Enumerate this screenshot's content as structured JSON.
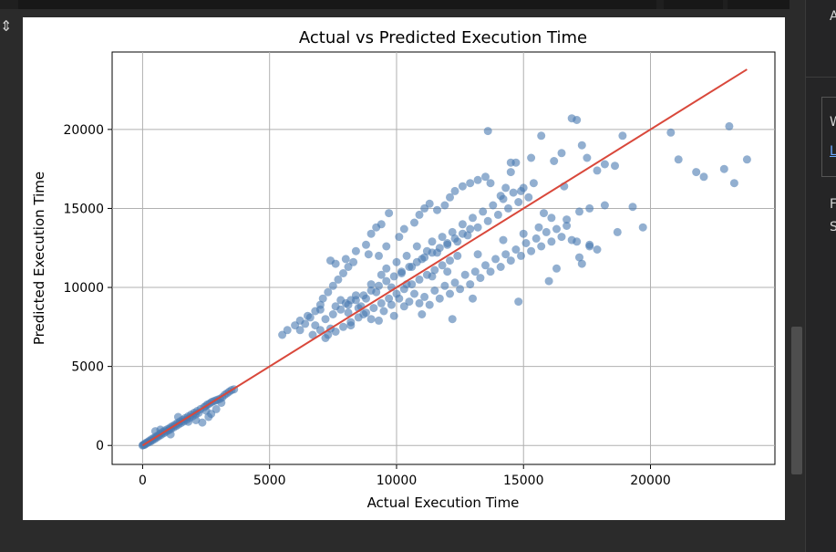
{
  "right_panel": {
    "line1": "A",
    "line2": "W",
    "line3_link": "L",
    "line4": "F",
    "line5": "S"
  },
  "colors": {
    "points": "#4a7ab0",
    "fit_line": "#d9483b",
    "grid": "#b0b0b0",
    "background": "#ffffff"
  },
  "chart_data": {
    "type": "scatter",
    "title": "Actual vs Predicted Execution Time",
    "xlabel": "Actual Execution Time",
    "ylabel": "Predicted Execution Time",
    "xlim": [
      -1200,
      24900
    ],
    "ylim": [
      -1200,
      24900
    ],
    "xticks": [
      0,
      5000,
      10000,
      15000,
      20000
    ],
    "yticks": [
      0,
      5000,
      10000,
      15000,
      20000
    ],
    "xtick_labels": [
      "0",
      "5000",
      "10000",
      "15000",
      "20000"
    ],
    "ytick_labels": [
      "0",
      "5000",
      "10000",
      "15000",
      "20000"
    ],
    "grid": true,
    "reference_line": {
      "x": [
        0,
        23800
      ],
      "y": [
        0,
        23800
      ]
    },
    "series": [
      {
        "points": [
          [
            0,
            0
          ],
          [
            20,
            30
          ],
          [
            50,
            60
          ],
          [
            80,
            40
          ],
          [
            110,
            140
          ],
          [
            150,
            120
          ],
          [
            190,
            210
          ],
          [
            220,
            180
          ],
          [
            260,
            290
          ],
          [
            300,
            240
          ],
          [
            340,
            380
          ],
          [
            380,
            320
          ],
          [
            430,
            470
          ],
          [
            470,
            400
          ],
          [
            520,
            560
          ],
          [
            560,
            500
          ],
          [
            610,
            650
          ],
          [
            650,
            590
          ],
          [
            700,
            760
          ],
          [
            740,
            680
          ],
          [
            790,
            850
          ],
          [
            840,
            780
          ],
          [
            880,
            950
          ],
          [
            930,
            870
          ],
          [
            980,
            1030
          ],
          [
            1030,
            960
          ],
          [
            1080,
            1120
          ],
          [
            1120,
            1040
          ],
          [
            1170,
            1220
          ],
          [
            1220,
            1140
          ],
          [
            1270,
            1310
          ],
          [
            1320,
            1230
          ],
          [
            1370,
            1420
          ],
          [
            1420,
            1330
          ],
          [
            1470,
            1520
          ],
          [
            1520,
            1430
          ],
          [
            1570,
            1620
          ],
          [
            1620,
            1520
          ],
          [
            1680,
            1730
          ],
          [
            1730,
            1620
          ],
          [
            1790,
            1840
          ],
          [
            1850,
            1740
          ],
          [
            1910,
            1950
          ],
          [
            1970,
            1850
          ],
          [
            2030,
            2070
          ],
          [
            2090,
            1960
          ],
          [
            2150,
            2180
          ],
          [
            2210,
            2060
          ],
          [
            2280,
            2300
          ],
          [
            2350,
            1450
          ],
          [
            2420,
            2420
          ],
          [
            2490,
            2500
          ],
          [
            2560,
            2600
          ],
          [
            2640,
            2650
          ],
          [
            2720,
            2750
          ],
          [
            2800,
            2800
          ],
          [
            2880,
            2850
          ],
          [
            2960,
            2900
          ],
          [
            3050,
            2950
          ],
          [
            3140,
            3050
          ],
          [
            3230,
            3200
          ],
          [
            3320,
            3300
          ],
          [
            3410,
            3400
          ],
          [
            3500,
            3500
          ],
          [
            3600,
            3550
          ],
          [
            500,
            900
          ],
          [
            700,
            1000
          ],
          [
            1100,
            700
          ],
          [
            1400,
            1800
          ],
          [
            1800,
            1500
          ],
          [
            2100,
            1600
          ],
          [
            2500,
            2200
          ],
          [
            2700,
            2000
          ],
          [
            2900,
            2300
          ],
          [
            3100,
            2700
          ],
          [
            2600,
            1800
          ],
          [
            5500,
            7000
          ],
          [
            5700,
            7300
          ],
          [
            6000,
            7600
          ],
          [
            6200,
            7900
          ],
          [
            6500,
            8200
          ],
          [
            6700,
            7000
          ],
          [
            7000,
            8600
          ],
          [
            7200,
            6800
          ],
          [
            7400,
            7400
          ],
          [
            7600,
            8800
          ],
          [
            7800,
            9200
          ],
          [
            8000,
            9000
          ],
          [
            8100,
            8400
          ],
          [
            8200,
            7600
          ],
          [
            8400,
            9500
          ],
          [
            8600,
            8800
          ],
          [
            8800,
            9300
          ],
          [
            9000,
            10200
          ],
          [
            9200,
            9700
          ],
          [
            9400,
            10800
          ],
          [
            9600,
            11200
          ],
          [
            9800,
            10000
          ],
          [
            10000,
            11600
          ],
          [
            10200,
            10900
          ],
          [
            10400,
            12000
          ],
          [
            10600,
            11300
          ],
          [
            10800,
            12600
          ],
          [
            11000,
            11800
          ],
          [
            11200,
            12300
          ],
          [
            11400,
            12900
          ],
          [
            11600,
            12200
          ],
          [
            11800,
            13200
          ],
          [
            12000,
            12700
          ],
          [
            12200,
            13500
          ],
          [
            12400,
            12900
          ],
          [
            12600,
            14000
          ],
          [
            12800,
            13300
          ],
          [
            13000,
            14400
          ],
          [
            13200,
            13800
          ],
          [
            13400,
            14800
          ],
          [
            13600,
            14200
          ],
          [
            13800,
            15200
          ],
          [
            14000,
            14600
          ],
          [
            14200,
            15600
          ],
          [
            14400,
            15000
          ],
          [
            14600,
            16000
          ],
          [
            14800,
            15400
          ],
          [
            15000,
            16300
          ],
          [
            15200,
            15700
          ],
          [
            15400,
            16600
          ],
          [
            6200,
            7300
          ],
          [
            6400,
            7700
          ],
          [
            6600,
            8100
          ],
          [
            6800,
            8500
          ],
          [
            7000,
            8900
          ],
          [
            7100,
            9300
          ],
          [
            7300,
            9700
          ],
          [
            7500,
            10100
          ],
          [
            7700,
            10500
          ],
          [
            7900,
            10900
          ],
          [
            8100,
            11300
          ],
          [
            8300,
            11600
          ],
          [
            7400,
            11700
          ],
          [
            7600,
            11500
          ],
          [
            8000,
            11800
          ],
          [
            8400,
            12300
          ],
          [
            8800,
            12700
          ],
          [
            9000,
            13400
          ],
          [
            9200,
            13800
          ],
          [
            9400,
            14000
          ],
          [
            9700,
            14700
          ],
          [
            8900,
            12100
          ],
          [
            9300,
            12000
          ],
          [
            9600,
            12600
          ],
          [
            10100,
            13200
          ],
          [
            10300,
            13700
          ],
          [
            10700,
            14100
          ],
          [
            10900,
            14600
          ],
          [
            11100,
            15000
          ],
          [
            11300,
            15300
          ],
          [
            11600,
            14900
          ],
          [
            11900,
            15200
          ],
          [
            12100,
            15700
          ],
          [
            12300,
            16100
          ],
          [
            12600,
            16400
          ],
          [
            12900,
            16600
          ],
          [
            13200,
            16800
          ],
          [
            13500,
            17000
          ],
          [
            13700,
            16600
          ],
          [
            14100,
            15800
          ],
          [
            14300,
            16300
          ],
          [
            14500,
            17300
          ],
          [
            14700,
            17900
          ],
          [
            14900,
            16100
          ],
          [
            15300,
            18200
          ],
          [
            15700,
            19600
          ],
          [
            16200,
            18000
          ],
          [
            16500,
            18500
          ],
          [
            16900,
            20700
          ],
          [
            17100,
            20600
          ],
          [
            17300,
            19000
          ],
          [
            17500,
            18200
          ],
          [
            17900,
            17400
          ],
          [
            18200,
            17800
          ],
          [
            18600,
            17700
          ],
          [
            18900,
            19600
          ],
          [
            13600,
            19900
          ],
          [
            14500,
            17900
          ],
          [
            15800,
            14700
          ],
          [
            16100,
            14400
          ],
          [
            8200,
            9200
          ],
          [
            8500,
            8700
          ],
          [
            8700,
            8300
          ],
          [
            9000,
            8000
          ],
          [
            9300,
            7900
          ],
          [
            9500,
            8500
          ],
          [
            9800,
            8900
          ],
          [
            10100,
            9300
          ],
          [
            10300,
            8800
          ],
          [
            10500,
            9100
          ],
          [
            10700,
            9600
          ],
          [
            10900,
            9000
          ],
          [
            11100,
            9400
          ],
          [
            11300,
            8900
          ],
          [
            11500,
            9800
          ],
          [
            11700,
            9300
          ],
          [
            11900,
            10100
          ],
          [
            12100,
            9600
          ],
          [
            12300,
            10300
          ],
          [
            12500,
            9900
          ],
          [
            12700,
            10800
          ],
          [
            12900,
            10200
          ],
          [
            13100,
            11000
          ],
          [
            13300,
            10600
          ],
          [
            13500,
            11400
          ],
          [
            13700,
            11000
          ],
          [
            13900,
            11800
          ],
          [
            14100,
            11300
          ],
          [
            14300,
            12100
          ],
          [
            14500,
            11700
          ],
          [
            14700,
            12400
          ],
          [
            14900,
            12000
          ],
          [
            15100,
            12800
          ],
          [
            15300,
            12300
          ],
          [
            15500,
            13100
          ],
          [
            15700,
            12600
          ],
          [
            15900,
            13500
          ],
          [
            16100,
            12900
          ],
          [
            16300,
            13700
          ],
          [
            16500,
            13200
          ],
          [
            16700,
            13900
          ],
          [
            16900,
            13000
          ],
          [
            17100,
            12900
          ],
          [
            17300,
            11500
          ],
          [
            17600,
            12600
          ],
          [
            17900,
            12400
          ],
          [
            16000,
            10400
          ],
          [
            16300,
            11200
          ],
          [
            17200,
            11900
          ],
          [
            17600,
            12700
          ],
          [
            12200,
            8000
          ],
          [
            14800,
            9100
          ],
          [
            13000,
            9300
          ],
          [
            11000,
            8300
          ],
          [
            9900,
            8200
          ],
          [
            10400,
            10200
          ],
          [
            11400,
            10700
          ],
          [
            12000,
            11000
          ],
          [
            13200,
            12100
          ],
          [
            14200,
            13000
          ],
          [
            15000,
            13400
          ],
          [
            15600,
            13800
          ],
          [
            16700,
            14300
          ],
          [
            17200,
            14800
          ],
          [
            17600,
            15000
          ],
          [
            18200,
            15200
          ],
          [
            18700,
            13500
          ],
          [
            19300,
            15100
          ],
          [
            19700,
            13800
          ],
          [
            16600,
            16400
          ],
          [
            20800,
            19800
          ],
          [
            21100,
            18100
          ],
          [
            21800,
            17300
          ],
          [
            22100,
            17000
          ],
          [
            22900,
            17500
          ],
          [
            23100,
            20200
          ],
          [
            23300,
            16600
          ],
          [
            23800,
            18100
          ],
          [
            7200,
            8000
          ],
          [
            7500,
            8300
          ],
          [
            7800,
            8600
          ],
          [
            8100,
            8900
          ],
          [
            8400,
            9200
          ],
          [
            8700,
            9500
          ],
          [
            9000,
            9800
          ],
          [
            9300,
            10100
          ],
          [
            9600,
            10400
          ],
          [
            9900,
            10700
          ],
          [
            10200,
            11000
          ],
          [
            10500,
            11300
          ],
          [
            10800,
            11600
          ],
          [
            11100,
            11900
          ],
          [
            11400,
            12200
          ],
          [
            11700,
            12500
          ],
          [
            12000,
            12800
          ],
          [
            12300,
            13100
          ],
          [
            12600,
            13400
          ],
          [
            12900,
            13700
          ],
          [
            6800,
            7600
          ],
          [
            7000,
            7300
          ],
          [
            7300,
            7000
          ],
          [
            7600,
            7200
          ],
          [
            7900,
            7500
          ],
          [
            8200,
            7800
          ],
          [
            8500,
            8100
          ],
          [
            8800,
            8400
          ],
          [
            9100,
            8700
          ],
          [
            9400,
            9000
          ],
          [
            9700,
            9300
          ],
          [
            10000,
            9600
          ],
          [
            10300,
            9900
          ],
          [
            10600,
            10200
          ],
          [
            10900,
            10500
          ],
          [
            11200,
            10800
          ],
          [
            11500,
            11100
          ],
          [
            11800,
            11400
          ],
          [
            12100,
            11700
          ],
          [
            12400,
            12000
          ]
        ]
      }
    ]
  }
}
